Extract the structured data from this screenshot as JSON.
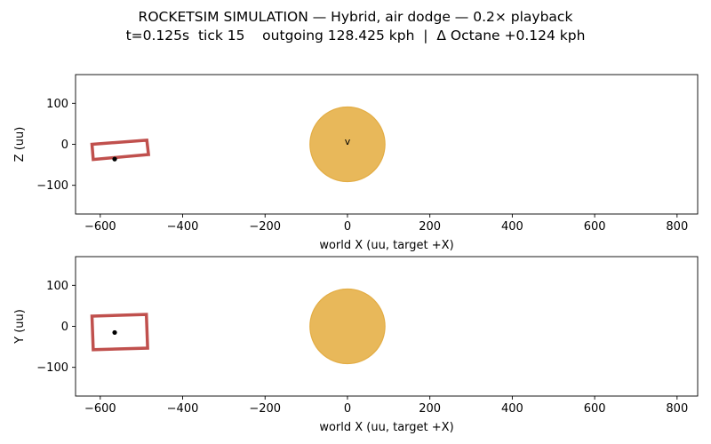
{
  "title_line1": "ROCKETSIM SIMULATION — Hybrid, air dodge — 0.2× playback",
  "title_line2": "t=0.125s  tick 15    outgoing 128.425 kph  |  Δ Octane +0.124 kph",
  "colors": {
    "car": "#c0504d",
    "ball": "#e8b85a",
    "ball_edge": "#e3ad45",
    "marker": "#000000"
  },
  "chart_data": [
    {
      "type": "scatter",
      "view": "side",
      "xlabel": "world X (uu, target +X)",
      "ylabel": "Z (uu)",
      "xlim": [
        -660,
        850
      ],
      "ylim": [
        -170,
        170
      ],
      "xticks": [
        -600,
        -400,
        -200,
        0,
        200,
        400,
        600,
        800
      ],
      "xtick_labels": [
        "−600",
        "−400",
        "−200",
        "0",
        "200",
        "400",
        "600",
        "800"
      ],
      "yticks": [
        100,
        0,
        -100
      ],
      "ytick_labels": [
        "100",
        "0",
        "−100"
      ],
      "car_outline": [
        [
          -620,
          0
        ],
        [
          -487,
          10
        ],
        [
          -483,
          -25
        ],
        [
          -617,
          -37
        ]
      ],
      "car_center": [
        -565,
        -36
      ],
      "ball": {
        "center": [
          0,
          0
        ],
        "radius": 91
      },
      "annotation": {
        "text": "v",
        "at": [
          0,
          5
        ]
      }
    },
    {
      "type": "scatter",
      "view": "top",
      "xlabel": "world X (uu, target +X)",
      "ylabel": "Y (uu)",
      "xlim": [
        -660,
        850
      ],
      "ylim": [
        -170,
        170
      ],
      "xticks": [
        -600,
        -400,
        -200,
        0,
        200,
        400,
        600,
        800
      ],
      "xtick_labels": [
        "−600",
        "−400",
        "−200",
        "0",
        "200",
        "400",
        "600",
        "800"
      ],
      "yticks": [
        100,
        0,
        -100
      ],
      "ytick_labels": [
        "100",
        "0",
        "−100"
      ],
      "car_outline": [
        [
          -620,
          25
        ],
        [
          -488,
          29
        ],
        [
          -485,
          -53
        ],
        [
          -617,
          -57
        ]
      ],
      "car_center": [
        -565,
        -15
      ],
      "ball": {
        "center": [
          0,
          0
        ],
        "radius": 91
      }
    }
  ]
}
